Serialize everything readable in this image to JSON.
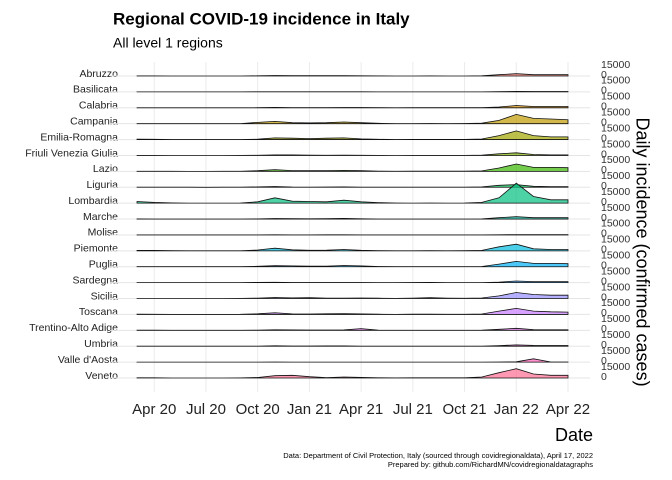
{
  "chart_data": {
    "type": "ridgeline",
    "title": "Regional COVID-19 incidence in Italy",
    "subtitle": "All level 1 regions",
    "x_label": "Date",
    "y2_label": "Daily incidence (confirmed cases)",
    "caption": [
      "Data: Department of Civil Protection, Italy (sourced through covidregionaldata), April 17, 2022",
      "Prepared by: github.com/RichardMN/covidregionaldatagraphs"
    ],
    "x": [
      "2020-03",
      "2020-04",
      "2020-05",
      "2020-06",
      "2020-07",
      "2020-08",
      "2020-09",
      "2020-10",
      "2020-11",
      "2020-12",
      "2021-01",
      "2021-02",
      "2021-03",
      "2021-04",
      "2021-05",
      "2021-06",
      "2021-07",
      "2021-08",
      "2021-09",
      "2021-10",
      "2021-11",
      "2021-12",
      "2022-01",
      "2022-02",
      "2022-03",
      "2022-04"
    ],
    "xlim": [
      "2020-03",
      "2022-04"
    ],
    "xticks": [
      {
        "value": "2020-04",
        "label": "Apr 20"
      },
      {
        "value": "2020-07",
        "label": "Jul 20"
      },
      {
        "value": "2020-10",
        "label": "Oct 20"
      },
      {
        "value": "2021-01",
        "label": "Jan 21"
      },
      {
        "value": "2021-04",
        "label": "Apr 21"
      },
      {
        "value": "2021-07",
        "label": "Jul 21"
      },
      {
        "value": "2021-10",
        "label": "Oct 21"
      },
      {
        "value": "2022-01",
        "label": "Jan 22"
      },
      {
        "value": "2022-04",
        "label": "Apr 22"
      }
    ],
    "ylim": [
      0,
      15000
    ],
    "yticks": [
      0,
      15000
    ],
    "grid": true,
    "series": [
      {
        "name": "Abruzzo",
        "color": "#f8766d",
        "values": [
          80,
          80,
          20,
          5,
          5,
          20,
          60,
          300,
          800,
          400,
          400,
          500,
          500,
          300,
          100,
          20,
          50,
          80,
          50,
          50,
          300,
          2000,
          3500,
          2000,
          2000,
          2000
        ]
      },
      {
        "name": "Basilicata",
        "color": "#ea8331",
        "values": [
          10,
          10,
          2,
          1,
          1,
          5,
          20,
          80,
          200,
          100,
          100,
          100,
          150,
          150,
          50,
          10,
          20,
          30,
          20,
          20,
          50,
          300,
          800,
          600,
          600,
          600
        ]
      },
      {
        "name": "Calabria",
        "color": "#d89000",
        "values": [
          30,
          30,
          5,
          2,
          2,
          20,
          30,
          200,
          600,
          300,
          300,
          300,
          400,
          500,
          300,
          50,
          100,
          200,
          150,
          100,
          200,
          1200,
          3500,
          2000,
          2000,
          2000
        ]
      },
      {
        "name": "Campania",
        "color": "#c09b00",
        "values": [
          50,
          50,
          20,
          10,
          10,
          50,
          200,
          2000,
          3500,
          1500,
          1200,
          1500,
          2500,
          1500,
          600,
          100,
          200,
          300,
          200,
          300,
          800,
          5000,
          14000,
          8000,
          7000,
          6000
        ]
      },
      {
        "name": "Emilia-Romagna",
        "color": "#a3a500",
        "values": [
          700,
          400,
          100,
          30,
          30,
          60,
          100,
          600,
          2500,
          2000,
          1500,
          2000,
          2500,
          1000,
          400,
          80,
          200,
          300,
          200,
          200,
          900,
          6000,
          13000,
          6000,
          4000,
          4000
        ]
      },
      {
        "name": "Friuli Venezia Giulia",
        "color": "#7cae00",
        "values": [
          150,
          100,
          20,
          5,
          5,
          20,
          40,
          300,
          900,
          900,
          500,
          300,
          500,
          300,
          80,
          10,
          50,
          80,
          60,
          150,
          600,
          2500,
          4000,
          1500,
          800,
          800
        ]
      },
      {
        "name": "Lazio",
        "color": "#39b600",
        "values": [
          100,
          100,
          30,
          20,
          20,
          100,
          150,
          1000,
          2500,
          1200,
          1200,
          1200,
          1500,
          1000,
          400,
          100,
          300,
          400,
          250,
          300,
          700,
          5000,
          11000,
          6000,
          6000,
          5500
        ]
      },
      {
        "name": "Liguria",
        "color": "#00bb4e",
        "values": [
          300,
          300,
          80,
          20,
          10,
          30,
          80,
          500,
          1200,
          400,
          300,
          400,
          500,
          300,
          100,
          20,
          60,
          100,
          60,
          80,
          500,
          3000,
          4000,
          1500,
          1000,
          1000
        ]
      },
      {
        "name": "Lombardia",
        "color": "#00bf7d",
        "values": [
          2500,
          1200,
          400,
          150,
          80,
          100,
          200,
          2000,
          8000,
          3000,
          2500,
          2000,
          4500,
          2000,
          800,
          200,
          150,
          200,
          150,
          300,
          1200,
          8000,
          30000,
          10000,
          5000,
          5000
        ]
      },
      {
        "name": "Marche",
        "color": "#00c1a3",
        "values": [
          300,
          150,
          30,
          5,
          5,
          20,
          40,
          300,
          900,
          500,
          400,
          700,
          1000,
          400,
          100,
          20,
          50,
          80,
          40,
          50,
          300,
          2000,
          3500,
          2000,
          2000,
          2000
        ]
      },
      {
        "name": "Molise",
        "color": "#00bfc4",
        "values": [
          5,
          10,
          5,
          1,
          1,
          5,
          10,
          50,
          150,
          100,
          100,
          150,
          150,
          60,
          20,
          2,
          5,
          10,
          10,
          5,
          30,
          200,
          500,
          300,
          300,
          300
        ]
      },
      {
        "name": "Piemonte",
        "color": "#00bae0",
        "values": [
          600,
          700,
          200,
          40,
          20,
          30,
          80,
          1200,
          4000,
          1500,
          800,
          1000,
          2000,
          800,
          300,
          50,
          100,
          150,
          100,
          150,
          600,
          6000,
          10000,
          3000,
          2000,
          2000
        ]
      },
      {
        "name": "Puglia",
        "color": "#00b0f6",
        "values": [
          60,
          60,
          20,
          10,
          10,
          40,
          100,
          600,
          1500,
          1300,
          800,
          900,
          1800,
          1200,
          400,
          60,
          100,
          200,
          150,
          150,
          400,
          4000,
          8000,
          5000,
          5000,
          4500
        ]
      },
      {
        "name": "Sardegna",
        "color": "#35a2ff",
        "values": [
          30,
          30,
          5,
          2,
          2,
          50,
          100,
          300,
          500,
          200,
          200,
          200,
          200,
          200,
          100,
          20,
          200,
          300,
          100,
          50,
          100,
          800,
          2500,
          1500,
          1500,
          1500
        ]
      },
      {
        "name": "Sicilia",
        "color": "#9590ff",
        "values": [
          50,
          50,
          10,
          5,
          10,
          50,
          200,
          700,
          1500,
          1000,
          1200,
          500,
          500,
          800,
          500,
          200,
          600,
          1200,
          600,
          400,
          800,
          4000,
          9000,
          6000,
          5000,
          5000
        ]
      },
      {
        "name": "Toscana",
        "color": "#c77cff",
        "values": [
          300,
          200,
          30,
          10,
          10,
          60,
          150,
          900,
          2500,
          800,
          700,
          1000,
          1300,
          800,
          300,
          60,
          300,
          400,
          250,
          200,
          600,
          5000,
          9000,
          5000,
          4000,
          3500
        ]
      },
      {
        "name": "Trentino-Alto Adige",
        "color": "#e76bf3",
        "values": [
          200,
          200,
          40,
          10,
          5,
          20,
          40,
          300,
          700,
          600,
          500,
          500,
          600,
          2500,
          100,
          10,
          30,
          60,
          40,
          60,
          300,
          1500,
          3000,
          1000,
          800,
          800
        ]
      },
      {
        "name": "Umbria",
        "color": "#fa62db",
        "values": [
          50,
          40,
          5,
          2,
          2,
          20,
          40,
          200,
          600,
          300,
          300,
          500,
          400,
          200,
          50,
          10,
          40,
          60,
          40,
          40,
          150,
          900,
          2000,
          1200,
          1000,
          1000
        ]
      },
      {
        "name": "Valle d'Aosta",
        "color": "#ff62bc",
        "values": [
          60,
          50,
          10,
          1,
          1,
          2,
          10,
          50,
          200,
          60,
          30,
          20,
          60,
          30,
          10,
          1,
          5,
          10,
          5,
          5,
          30,
          200,
          400,
          5000,
          100,
          100
        ]
      },
      {
        "name": "Veneto",
        "color": "#ff6c91",
        "values": [
          300,
          300,
          60,
          20,
          20,
          60,
          150,
          800,
          3500,
          4000,
          2000,
          600,
          1500,
          900,
          300,
          80,
          300,
          300,
          250,
          300,
          1500,
          8000,
          14000,
          6000,
          4000,
          4000
        ]
      }
    ]
  }
}
